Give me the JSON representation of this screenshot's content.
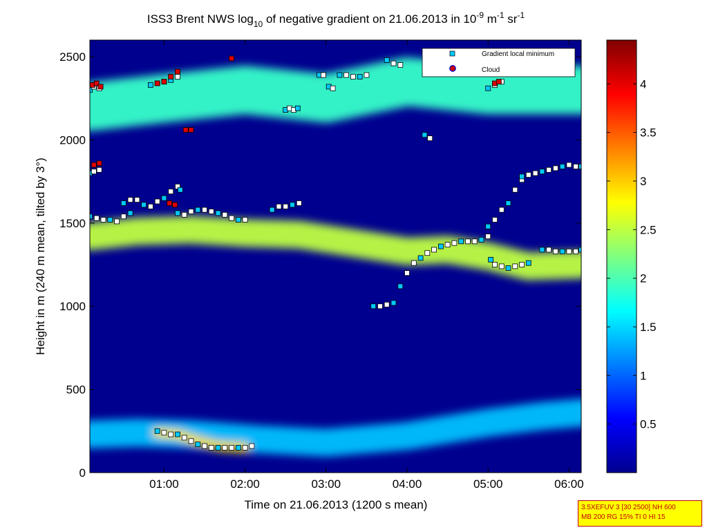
{
  "chart_data": {
    "type": "heatmap",
    "title_parts": [
      "ISS3 Brent NWS log",
      "10",
      " of negative gradient on 21.06.2013 in 10",
      "-9",
      " m",
      "-1",
      " sr",
      "-1"
    ],
    "xlabel": "Time on 21.06.2013 (1200 s mean)",
    "ylabel": "Height in m (240 m mean, tilted by 3°)",
    "xlim_minutes": [
      5,
      369
    ],
    "ylim": [
      0,
      2600
    ],
    "x_ticks": [
      {
        "value": 60,
        "label": "01:00"
      },
      {
        "value": 120,
        "label": "02:00"
      },
      {
        "value": 180,
        "label": "03:00"
      },
      {
        "value": 240,
        "label": "04:00"
      },
      {
        "value": 300,
        "label": "05:00"
      },
      {
        "value": 360,
        "label": "06:00"
      }
    ],
    "y_ticks": [
      0,
      500,
      1000,
      1500,
      2000,
      2500
    ],
    "colorbar": {
      "min": 0,
      "max": 4.45,
      "ticks": [
        "0.5",
        "1",
        "1.5",
        "2",
        "2.5",
        "3",
        "3.5",
        "4"
      ],
      "colormap": "jet"
    },
    "legend": {
      "position": "top-right",
      "entries": [
        {
          "label": "Gradient local minimum",
          "color": "#00c8ff",
          "marker": "square"
        },
        {
          "label": "Cloud",
          "color": "#cc0000",
          "marker": "circle"
        }
      ]
    },
    "layers": [
      {
        "name": "surface low layer",
        "level": 1.4,
        "points": [
          [
            5,
            230
          ],
          [
            40,
            240
          ],
          [
            80,
            230
          ],
          [
            130,
            200
          ],
          [
            180,
            180
          ],
          [
            240,
            220
          ],
          [
            300,
            300
          ],
          [
            340,
            340
          ],
          [
            369,
            360
          ]
        ]
      },
      {
        "name": "surface peak",
        "level": 2.9,
        "points": [
          [
            55,
            240
          ],
          [
            70,
            230
          ],
          [
            85,
            190
          ],
          [
            100,
            160
          ],
          [
            120,
            150
          ]
        ]
      },
      {
        "name": "residual layer top",
        "level": 2.5,
        "points": [
          [
            5,
            1420
          ],
          [
            40,
            1450
          ],
          [
            80,
            1460
          ],
          [
            120,
            1440
          ],
          [
            160,
            1430
          ],
          [
            200,
            1380
          ],
          [
            240,
            1330
          ],
          [
            270,
            1340
          ],
          [
            300,
            1300
          ],
          [
            330,
            1240
          ],
          [
            369,
            1250
          ]
        ]
      },
      {
        "name": "upper band",
        "level": 1.9,
        "points": [
          [
            5,
            2200
          ],
          [
            60,
            2250
          ],
          [
            120,
            2300
          ],
          [
            180,
            2250
          ],
          [
            240,
            2350
          ],
          [
            300,
            2300
          ],
          [
            369,
            2300
          ]
        ]
      }
    ],
    "gradient_minima_series": [
      {
        "x": [
          5,
          10,
          15,
          20,
          25,
          30,
          35
        ],
        "y": [
          1540,
          1530,
          1520,
          1520,
          1510,
          1540,
          1560
        ]
      },
      {
        "x": [
          30,
          35,
          40,
          45,
          50,
          55,
          60,
          65,
          70,
          72
        ],
        "y": [
          1620,
          1640,
          1640,
          1610,
          1600,
          1630,
          1650,
          1690,
          1720,
          1700
        ]
      },
      {
        "x": [
          70,
          75,
          80,
          85,
          90,
          95,
          100,
          105,
          110,
          115,
          120
        ],
        "y": [
          1560,
          1550,
          1570,
          1580,
          1580,
          1570,
          1560,
          1550,
          1530,
          1520,
          1520
        ]
      },
      {
        "x": [
          140,
          145,
          150,
          155,
          160
        ],
        "y": [
          1580,
          1600,
          1600,
          1610,
          1620
        ]
      },
      {
        "x": [
          5,
          8,
          12
        ],
        "y": [
          1800,
          1810,
          1820
        ]
      },
      {
        "x": [
          50,
          55,
          60,
          65,
          70
        ],
        "y": [
          2330,
          2340,
          2350,
          2360,
          2380
        ]
      },
      {
        "x": [
          5,
          8,
          12
        ],
        "y": [
          2300,
          2320,
          2310
        ]
      },
      {
        "x": [
          150,
          153,
          156,
          159
        ],
        "y": [
          2180,
          2190,
          2180,
          2190
        ]
      },
      {
        "x": [
          190,
          195,
          200,
          205,
          210
        ],
        "y": [
          2390,
          2390,
          2380,
          2380,
          2390
        ]
      },
      {
        "x": [
          225,
          230,
          235
        ],
        "y": [
          2480,
          2460,
          2450
        ]
      },
      {
        "x": [
          300,
          305,
          310
        ],
        "y": [
          2310,
          2330,
          2350
        ]
      },
      {
        "x": [
          253,
          257
        ],
        "y": [
          2030,
          2010
        ]
      },
      {
        "x": [
          182,
          185
        ],
        "y": [
          2320,
          2310
        ]
      },
      {
        "x": [
          175,
          178
        ],
        "y": [
          2390,
          2390
        ]
      },
      {
        "x": [
          215,
          220,
          225,
          230
        ],
        "y": [
          1000,
          1000,
          1010,
          1020
        ]
      },
      {
        "x": [
          235,
          240,
          245,
          250,
          255,
          260,
          265,
          270,
          275,
          280,
          285,
          290,
          295,
          300
        ],
        "y": [
          1120,
          1200,
          1260,
          1290,
          1320,
          1340,
          1360,
          1370,
          1380,
          1390,
          1390,
          1390,
          1400,
          1420
        ]
      },
      {
        "x": [
          300,
          305,
          310,
          315,
          320,
          325
        ],
        "y": [
          1480,
          1520,
          1580,
          1620,
          1700,
          1760
        ]
      },
      {
        "x": [
          325,
          330,
          335,
          340,
          345,
          350,
          355,
          360,
          365,
          369
        ],
        "y": [
          1780,
          1790,
          1800,
          1810,
          1820,
          1830,
          1840,
          1850,
          1840,
          1840
        ]
      },
      {
        "x": [
          302,
          305,
          310,
          315,
          320,
          325,
          330
        ],
        "y": [
          1280,
          1250,
          1240,
          1230,
          1240,
          1250,
          1260
        ]
      },
      {
        "x": [
          340,
          345,
          350,
          355,
          360,
          365,
          369
        ],
        "y": [
          1340,
          1340,
          1330,
          1330,
          1330,
          1330,
          1340
        ]
      },
      {
        "x": [
          55,
          60,
          65,
          70,
          75,
          80,
          85,
          90,
          95,
          100,
          105,
          110,
          115,
          120,
          125
        ],
        "y": [
          250,
          240,
          230,
          230,
          210,
          190,
          170,
          160,
          150,
          150,
          150,
          150,
          150,
          150,
          160
        ]
      }
    ],
    "cloud_points": [
      {
        "x": [
          7,
          10,
          13
        ],
        "y": [
          2330,
          2340,
          2320
        ]
      },
      {
        "x": [
          55,
          60,
          65,
          70
        ],
        "y": [
          2340,
          2350,
          2380,
          2410
        ]
      },
      {
        "x": [
          76,
          80
        ],
        "y": [
          2060,
          2060
        ]
      },
      {
        "x": [
          8,
          12
        ],
        "y": [
          1850,
          1860
        ]
      },
      {
        "x": [
          64,
          68
        ],
        "y": [
          1620,
          1610
        ]
      },
      {
        "x": [
          110
        ],
        "y": [
          2490
        ]
      },
      {
        "x": [
          305,
          308
        ],
        "y": [
          2340,
          2350
        ]
      }
    ]
  },
  "info_box": {
    "line1": "3.5XEFUV 3 [30 2500] NH 600",
    "line2": "MB 200 RG 15% TI 0 HI 15"
  }
}
